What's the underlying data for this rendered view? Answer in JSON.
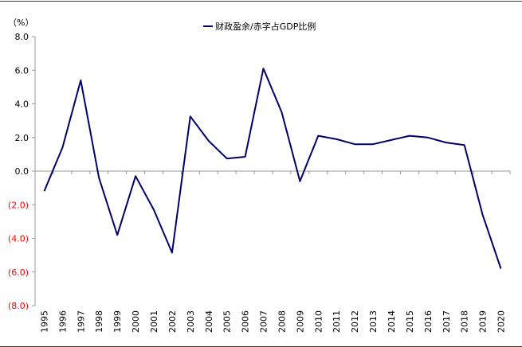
{
  "chart_data": {
    "type": "line",
    "unit_label": "（%）",
    "x": [
      "1995",
      "1996",
      "1997",
      "1998",
      "1999",
      "2000",
      "2001",
      "2002",
      "2003",
      "2004",
      "2005",
      "2006",
      "2007",
      "2008",
      "2009",
      "2010",
      "2011",
      "2012",
      "2013",
      "2014",
      "2015",
      "2016",
      "2017",
      "2018",
      "2019",
      "2020"
    ],
    "series": [
      {
        "name": "财政盈余/赤字占GDP比例",
        "color": "#000066",
        "values": [
          -1.2,
          1.4,
          5.4,
          -0.4,
          -3.8,
          -0.3,
          -2.3,
          -4.85,
          3.25,
          1.8,
          0.75,
          0.85,
          6.1,
          3.5,
          -0.6,
          2.1,
          1.9,
          1.6,
          1.6,
          1.85,
          2.1,
          2.0,
          1.7,
          1.55,
          -2.6,
          -5.8
        ]
      }
    ],
    "y_ticks": [
      {
        "value": 8,
        "label": "8.0",
        "color": "#000000"
      },
      {
        "value": 6,
        "label": "6.0",
        "color": "#000000"
      },
      {
        "value": 4,
        "label": "4.0",
        "color": "#000000"
      },
      {
        "value": 2,
        "label": "2.0",
        "color": "#000000"
      },
      {
        "value": 0,
        "label": "0.0",
        "color": "#000000"
      },
      {
        "value": -2,
        "label": "(2.0)",
        "color": "#ff0000"
      },
      {
        "value": -4,
        "label": "(4.0)",
        "color": "#ff0000"
      },
      {
        "value": -6,
        "label": "(6.0)",
        "color": "#ff0000"
      },
      {
        "value": -8,
        "label": "(8.0)",
        "color": "#ff0000"
      }
    ],
    "ylim": [
      -8,
      8
    ],
    "grid": false,
    "legend_position": "top-center",
    "axis_color": "#999999",
    "border_color": "#7a1d1d"
  }
}
